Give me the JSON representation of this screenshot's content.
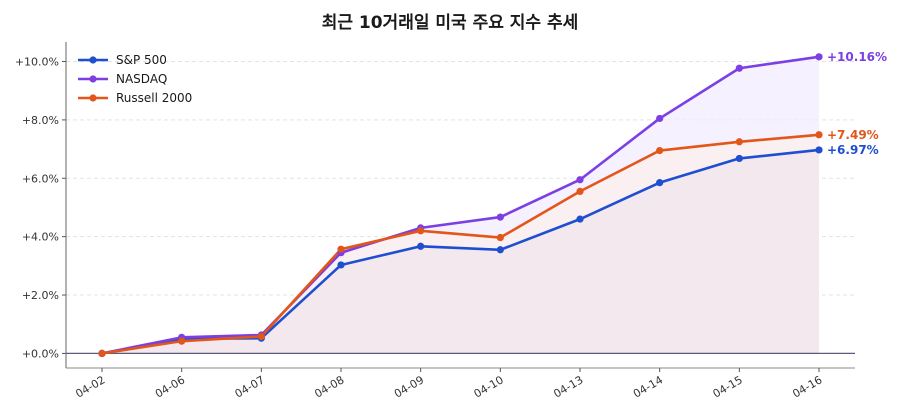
{
  "chart_data": {
    "type": "line",
    "title": "최근 10거래일 미국 주요 지수 추세",
    "xlabel": "",
    "ylabel": "",
    "x": [
      "04-02",
      "04-06",
      "04-07",
      "04-08",
      "04-09",
      "04-10",
      "04-13",
      "04-14",
      "04-15",
      "04-16"
    ],
    "ylim": [
      -0.5,
      10.6
    ],
    "yticks": [
      0,
      2,
      4,
      6,
      8,
      10
    ],
    "ytick_labels": [
      "+0.0%",
      "+2.0%",
      "+4.0%",
      "+6.0%",
      "+8.0%",
      "+10.0%"
    ],
    "grid": true,
    "legend_position": "top-left",
    "series": [
      {
        "name": "S&P 500",
        "color": "#1f4fd0",
        "fill": "#f2e6ee",
        "values": [
          0.0,
          0.5,
          0.52,
          3.03,
          3.67,
          3.55,
          4.6,
          5.85,
          6.68,
          6.97
        ],
        "end_label": "+6.97%"
      },
      {
        "name": "NASDAQ",
        "color": "#7b3fe4",
        "fill": "#f1ecfd",
        "values": [
          0.0,
          0.55,
          0.63,
          3.45,
          4.3,
          4.67,
          5.95,
          8.05,
          9.77,
          10.16
        ],
        "end_label": "+10.16%"
      },
      {
        "name": "Russell 2000",
        "color": "#e2561a",
        "fill": "#fbeeec",
        "values": [
          0.0,
          0.42,
          0.58,
          3.57,
          4.2,
          3.97,
          5.55,
          6.95,
          7.25,
          7.49
        ],
        "end_label": "+7.49%"
      }
    ]
  }
}
